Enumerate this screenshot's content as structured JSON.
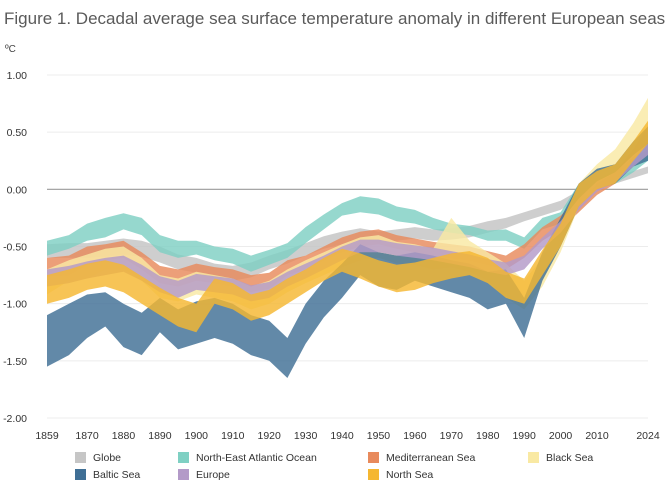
{
  "title": "Figure 1. Decadal average sea surface temperature anomaly in different European seas",
  "chart_data": {
    "type": "area",
    "title": "Figure 1. Decadal average sea surface temperature anomaly in different European seas",
    "ylabel": "ºC",
    "xlabel": "",
    "xlim": [
      1859,
      2024
    ],
    "ylim": [
      -2.0,
      1.0
    ],
    "y_ticks": [
      "1.00",
      "0.50",
      "0.00",
      "-0.50",
      "-1.00",
      "-1.50",
      "-2.00"
    ],
    "x_ticks": [
      "1859",
      "1870",
      "1880",
      "1890",
      "1900",
      "1910",
      "1920",
      "1930",
      "1940",
      "1950",
      "1960",
      "1970",
      "1980",
      "1990",
      "2000",
      "2010",
      "2024"
    ],
    "grid": "horizontal",
    "legend_position": "bottom",
    "x": [
      1859,
      1865,
      1870,
      1875,
      1880,
      1885,
      1890,
      1895,
      1900,
      1905,
      1910,
      1915,
      1920,
      1925,
      1930,
      1935,
      1940,
      1945,
      1950,
      1955,
      1960,
      1965,
      1970,
      1975,
      1980,
      1985,
      1990,
      1995,
      2000,
      2005,
      2010,
      2015,
      2020,
      2024
    ],
    "series": [
      {
        "name": "Globe",
        "color": "#c6c6c6",
        "lower": [
          -0.6,
          -0.6,
          -0.6,
          -0.59,
          -0.57,
          -0.59,
          -0.64,
          -0.7,
          -0.73,
          -0.78,
          -0.8,
          -0.77,
          -0.7,
          -0.65,
          -0.58,
          -0.52,
          -0.48,
          -0.44,
          -0.47,
          -0.45,
          -0.43,
          -0.45,
          -0.44,
          -0.42,
          -0.38,
          -0.34,
          -0.28,
          -0.23,
          -0.18,
          -0.08,
          0.0,
          0.05,
          0.1,
          0.14
        ],
        "upper": [
          -0.48,
          -0.47,
          -0.47,
          -0.45,
          -0.43,
          -0.45,
          -0.5,
          -0.57,
          -0.6,
          -0.65,
          -0.67,
          -0.64,
          -0.58,
          -0.53,
          -0.47,
          -0.41,
          -0.37,
          -0.34,
          -0.37,
          -0.35,
          -0.33,
          -0.35,
          -0.34,
          -0.32,
          -0.28,
          -0.25,
          -0.2,
          -0.15,
          -0.1,
          -0.01,
          0.06,
          0.11,
          0.16,
          0.2
        ]
      },
      {
        "name": "North-East Atlantic Ocean",
        "color": "#7fd0c3",
        "lower": [
          -0.58,
          -0.52,
          -0.45,
          -0.42,
          -0.35,
          -0.4,
          -0.55,
          -0.6,
          -0.57,
          -0.62,
          -0.65,
          -0.72,
          -0.66,
          -0.6,
          -0.47,
          -0.35,
          -0.23,
          -0.2,
          -0.22,
          -0.28,
          -0.3,
          -0.35,
          -0.38,
          -0.4,
          -0.45,
          -0.45,
          -0.52,
          -0.35,
          -0.3,
          -0.05,
          0.02,
          0.05,
          0.15,
          0.25
        ],
        "upper": [
          -0.45,
          -0.4,
          -0.3,
          -0.25,
          -0.21,
          -0.25,
          -0.4,
          -0.45,
          -0.45,
          -0.5,
          -0.52,
          -0.58,
          -0.53,
          -0.47,
          -0.33,
          -0.22,
          -0.12,
          -0.06,
          -0.08,
          -0.15,
          -0.18,
          -0.25,
          -0.3,
          -0.32,
          -0.36,
          -0.35,
          -0.42,
          -0.25,
          -0.2,
          0.05,
          0.12,
          0.15,
          0.28,
          0.35
        ]
      },
      {
        "name": "Mediterranean Sea",
        "color": "#e88a5c",
        "lower": [
          -0.76,
          -0.75,
          -0.66,
          -0.62,
          -0.6,
          -0.7,
          -0.82,
          -0.85,
          -0.8,
          -0.82,
          -0.85,
          -0.9,
          -0.87,
          -0.75,
          -0.7,
          -0.62,
          -0.55,
          -0.5,
          -0.48,
          -0.52,
          -0.55,
          -0.58,
          -0.6,
          -0.62,
          -0.66,
          -0.7,
          -0.6,
          -0.45,
          -0.35,
          -0.2,
          -0.05,
          0.05,
          0.25,
          0.4
        ],
        "upper": [
          -0.6,
          -0.58,
          -0.5,
          -0.48,
          -0.45,
          -0.55,
          -0.67,
          -0.7,
          -0.65,
          -0.68,
          -0.7,
          -0.75,
          -0.73,
          -0.62,
          -0.58,
          -0.5,
          -0.42,
          -0.37,
          -0.35,
          -0.4,
          -0.43,
          -0.46,
          -0.48,
          -0.5,
          -0.54,
          -0.58,
          -0.48,
          -0.33,
          -0.23,
          -0.08,
          0.07,
          0.18,
          0.4,
          0.55
        ]
      },
      {
        "name": "Black Sea",
        "color": "#f9e9a3",
        "lower": [
          -0.92,
          -0.8,
          -0.78,
          -0.7,
          -0.7,
          -0.8,
          -0.95,
          -0.98,
          -0.92,
          -0.95,
          -0.98,
          -1.05,
          -1.0,
          -0.9,
          -0.82,
          -0.75,
          -0.68,
          -0.62,
          -0.6,
          -0.65,
          -0.66,
          -0.7,
          -0.68,
          -0.72,
          -0.8,
          -0.95,
          -1.05,
          -0.85,
          -0.55,
          -0.15,
          0.05,
          0.15,
          0.35,
          0.55
        ],
        "upper": [
          -0.7,
          -0.62,
          -0.57,
          -0.52,
          -0.5,
          -0.6,
          -0.75,
          -0.78,
          -0.72,
          -0.75,
          -0.78,
          -0.85,
          -0.8,
          -0.7,
          -0.62,
          -0.55,
          -0.48,
          -0.42,
          -0.4,
          -0.46,
          -0.48,
          -0.52,
          -0.25,
          -0.45,
          -0.55,
          -0.65,
          -0.8,
          -0.6,
          -0.3,
          0.05,
          0.22,
          0.35,
          0.58,
          0.8
        ]
      },
      {
        "name": "Baltic Sea",
        "color": "#3f6f95",
        "lower": [
          -1.55,
          -1.45,
          -1.3,
          -1.2,
          -1.38,
          -1.45,
          -1.25,
          -1.4,
          -1.35,
          -1.3,
          -1.35,
          -1.45,
          -1.5,
          -1.65,
          -1.35,
          -1.12,
          -0.95,
          -0.75,
          -0.85,
          -0.88,
          -0.8,
          -0.85,
          -0.9,
          -0.95,
          -1.05,
          -1.0,
          -1.3,
          -0.8,
          -0.5,
          -0.15,
          0.0,
          0.05,
          0.2,
          0.25
        ],
        "upper": [
          -1.1,
          -1.0,
          -0.92,
          -0.9,
          -1.0,
          -1.08,
          -0.95,
          -1.05,
          -0.98,
          -0.95,
          -1.0,
          -1.1,
          -1.15,
          -1.3,
          -1.0,
          -0.8,
          -0.65,
          -0.48,
          -0.55,
          -0.58,
          -0.55,
          -0.58,
          -0.62,
          -0.65,
          -0.72,
          -0.7,
          -0.95,
          -0.55,
          -0.25,
          0.05,
          0.18,
          0.22,
          0.42,
          0.55
        ]
      },
      {
        "name": "Europe",
        "color": "#b39ac8",
        "lower": [
          -0.85,
          -0.82,
          -0.78,
          -0.75,
          -0.72,
          -0.8,
          -0.9,
          -0.95,
          -0.88,
          -0.9,
          -0.92,
          -0.98,
          -0.95,
          -0.85,
          -0.78,
          -0.7,
          -0.62,
          -0.55,
          -0.55,
          -0.58,
          -0.6,
          -0.62,
          -0.65,
          -0.68,
          -0.72,
          -0.75,
          -0.7,
          -0.52,
          -0.38,
          -0.18,
          -0.02,
          0.06,
          0.2,
          0.3
        ],
        "upper": [
          -0.7,
          -0.67,
          -0.63,
          -0.6,
          -0.58,
          -0.66,
          -0.76,
          -0.8,
          -0.74,
          -0.76,
          -0.78,
          -0.84,
          -0.81,
          -0.72,
          -0.65,
          -0.58,
          -0.5,
          -0.44,
          -0.44,
          -0.47,
          -0.49,
          -0.51,
          -0.54,
          -0.57,
          -0.61,
          -0.64,
          -0.58,
          -0.42,
          -0.28,
          -0.08,
          0.07,
          0.15,
          0.3,
          0.4
        ]
      },
      {
        "name": "North Sea",
        "color": "#f5b731",
        "lower": [
          -1.0,
          -0.95,
          -0.88,
          -0.85,
          -0.9,
          -1.0,
          -1.1,
          -1.2,
          -1.25,
          -1.0,
          -1.05,
          -1.15,
          -1.1,
          -1.0,
          -0.9,
          -0.8,
          -0.72,
          -0.78,
          -0.85,
          -0.9,
          -0.88,
          -0.82,
          -0.78,
          -0.75,
          -0.82,
          -0.95,
          -1.0,
          -0.75,
          -0.5,
          -0.15,
          0.0,
          0.05,
          0.25,
          0.4
        ],
        "upper": [
          -0.75,
          -0.7,
          -0.65,
          -0.62,
          -0.66,
          -0.76,
          -0.86,
          -0.95,
          -1.0,
          -0.78,
          -0.82,
          -0.92,
          -0.88,
          -0.78,
          -0.7,
          -0.6,
          -0.52,
          -0.56,
          -0.62,
          -0.66,
          -0.64,
          -0.6,
          -0.56,
          -0.54,
          -0.6,
          -0.72,
          -0.78,
          -0.53,
          -0.3,
          0.05,
          0.16,
          0.22,
          0.42,
          0.6
        ]
      }
    ]
  }
}
